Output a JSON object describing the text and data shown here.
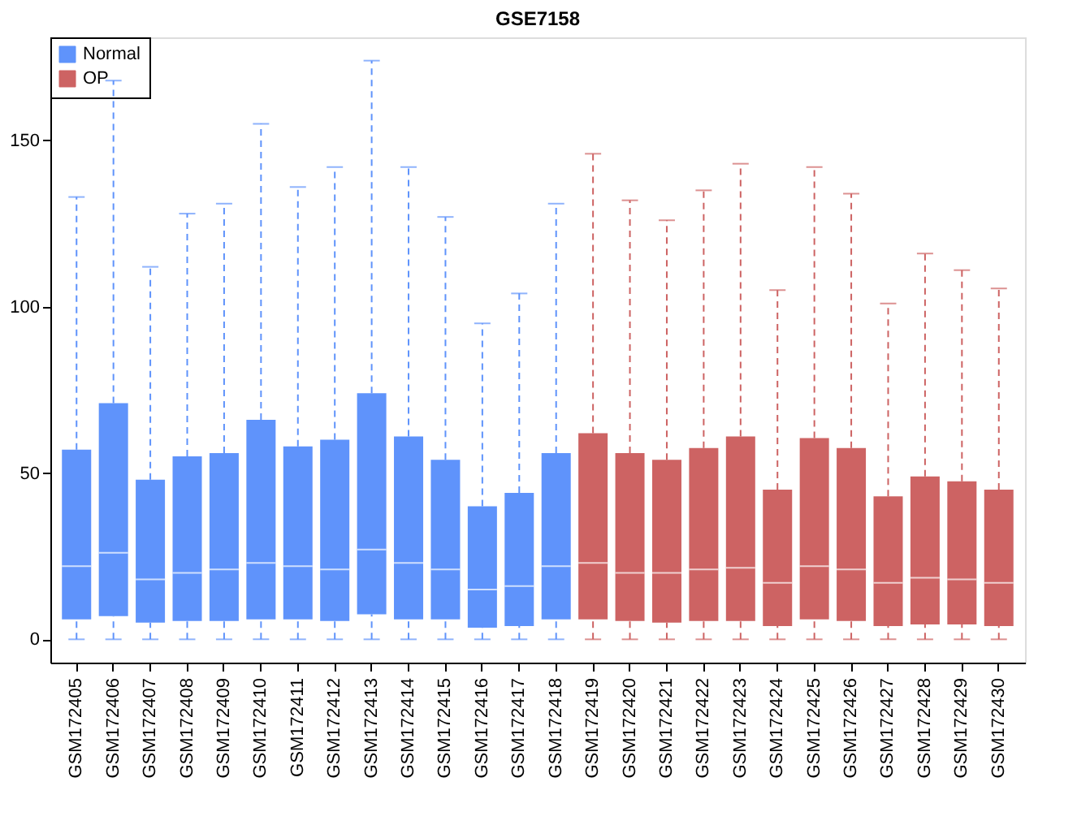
{
  "chart_data": {
    "type": "box",
    "title": "GSE7158",
    "categories": [
      "GSM172405",
      "GSM172406",
      "GSM172407",
      "GSM172408",
      "GSM172409",
      "GSM172410",
      "GSM172411",
      "GSM172412",
      "GSM172413",
      "GSM172414",
      "GSM172415",
      "GSM172416",
      "GSM172417",
      "GSM172418",
      "GSM172419",
      "GSM172420",
      "GSM172421",
      "GSM172422",
      "GSM172423",
      "GSM172424",
      "GSM172425",
      "GSM172426",
      "GSM172427",
      "GSM172428",
      "GSM172429",
      "GSM172430"
    ],
    "series": [
      {
        "name": "Normal",
        "color": "#5f93fb",
        "boxes": [
          {
            "low": 0,
            "q1": 6,
            "median": 22,
            "q3": 57,
            "high": 133
          },
          {
            "low": 0,
            "q1": 7,
            "median": 26,
            "q3": 71,
            "high": 168
          },
          {
            "low": 0,
            "q1": 5,
            "median": 18,
            "q3": 48,
            "high": 112
          },
          {
            "low": 0,
            "q1": 5.5,
            "median": 20,
            "q3": 55,
            "high": 128
          },
          {
            "low": 0,
            "q1": 5.5,
            "median": 21,
            "q3": 56,
            "high": 131
          },
          {
            "low": 0,
            "q1": 6,
            "median": 23,
            "q3": 66,
            "high": 155
          },
          {
            "low": 0,
            "q1": 6,
            "median": 22,
            "q3": 58,
            "high": 136
          },
          {
            "low": 0,
            "q1": 5.5,
            "median": 21,
            "q3": 60,
            "high": 142
          },
          {
            "low": 0,
            "q1": 7.5,
            "median": 27,
            "q3": 74,
            "high": 174
          },
          {
            "low": 0,
            "q1": 6,
            "median": 23,
            "q3": 61,
            "high": 142
          },
          {
            "low": 0,
            "q1": 6,
            "median": 21,
            "q3": 54,
            "high": 127
          },
          {
            "low": 0,
            "q1": 3.5,
            "median": 15,
            "q3": 40,
            "high": 95
          },
          {
            "low": 0,
            "q1": 4,
            "median": 16,
            "q3": 44,
            "high": 104
          },
          {
            "low": 0,
            "q1": 6,
            "median": 22,
            "q3": 56,
            "high": 131
          },
          null,
          null,
          null,
          null,
          null,
          null,
          null,
          null,
          null,
          null,
          null,
          null
        ]
      },
      {
        "name": "OP",
        "color": "#cd6363",
        "boxes": [
          null,
          null,
          null,
          null,
          null,
          null,
          null,
          null,
          null,
          null,
          null,
          null,
          null,
          null,
          {
            "low": 0,
            "q1": 6,
            "median": 23,
            "q3": 62,
            "high": 146
          },
          {
            "low": 0,
            "q1": 5.5,
            "median": 20,
            "q3": 56,
            "high": 132
          },
          {
            "low": 0,
            "q1": 5,
            "median": 20,
            "q3": 54,
            "high": 126
          },
          {
            "low": 0,
            "q1": 5.5,
            "median": 21,
            "q3": 57.5,
            "high": 135
          },
          {
            "low": 0,
            "q1": 5.5,
            "median": 21.5,
            "q3": 61,
            "high": 143
          },
          {
            "low": 0,
            "q1": 4,
            "median": 17,
            "q3": 45,
            "high": 105
          },
          {
            "low": 0,
            "q1": 6,
            "median": 22,
            "q3": 60.5,
            "high": 142
          },
          {
            "low": 0,
            "q1": 5.5,
            "median": 21,
            "q3": 57.5,
            "high": 134
          },
          {
            "low": 0,
            "q1": 4,
            "median": 17,
            "q3": 43,
            "high": 101
          },
          {
            "low": 0,
            "q1": 4.5,
            "median": 18.5,
            "q3": 49,
            "high": 116
          },
          {
            "low": 0,
            "q1": 4.5,
            "median": 18,
            "q3": 47.5,
            "high": 111
          },
          {
            "low": 0,
            "q1": 4,
            "median": 17,
            "q3": 45,
            "high": 105.5
          }
        ]
      }
    ],
    "ylim": [
      -7,
      181
    ],
    "yticks": [
      0,
      50,
      100,
      150
    ],
    "grid": false,
    "legend": "top left"
  }
}
